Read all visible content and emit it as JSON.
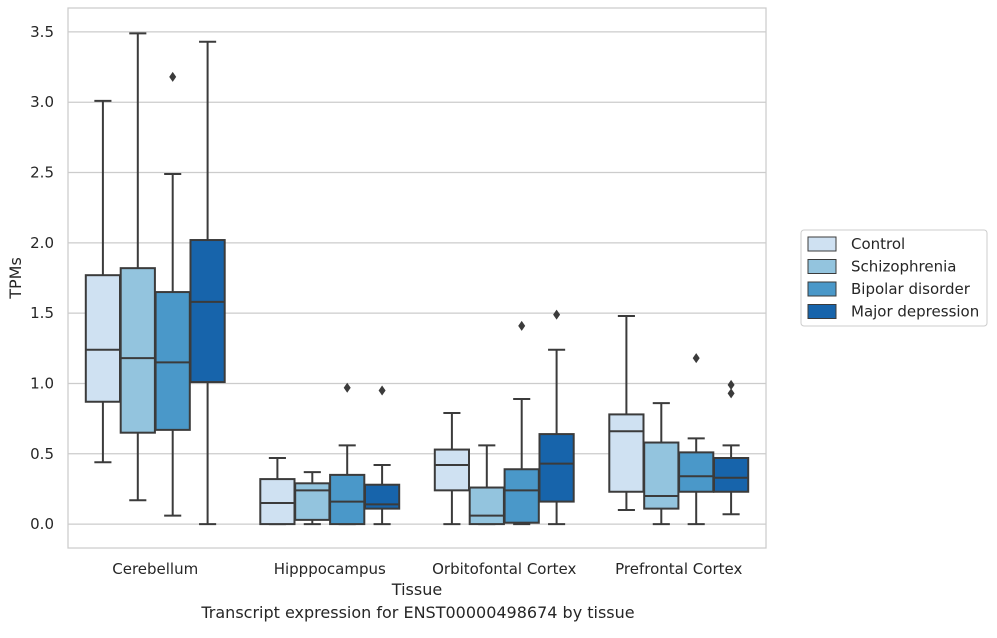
{
  "caption": "Transcript expression for ENST00000498674 by tissue",
  "colors": {
    "Control": "#cfe1f2",
    "Schizophrenia": "#93c4de",
    "Bipolar disorder": "#4a98c9",
    "Major depression": "#1764ab",
    "box_edge": "#3b3b3b",
    "grid": "#cccccc",
    "frame": "#cccccc"
  },
  "chart_data": {
    "type": "box",
    "xlabel": "Tissue",
    "ylabel": "TPMs",
    "ylim": [
      -0.17,
      3.67
    ],
    "yticks": [
      0.0,
      0.5,
      1.0,
      1.5,
      2.0,
      2.5,
      3.0,
      3.5
    ],
    "ytick_labels": [
      "0.0",
      "0.5",
      "1.0",
      "1.5",
      "2.0",
      "2.5",
      "3.0",
      "3.5"
    ],
    "grid": "horizontal",
    "legend_position": "right",
    "categories": [
      "Cerebellum",
      "Hipppocampus",
      "Orbitofontal Cortex",
      "Prefrontal Cortex"
    ],
    "series": [
      {
        "name": "Control",
        "boxes": [
          {
            "whisker_low": 0.44,
            "q1": 0.87,
            "median": 1.24,
            "q3": 1.77,
            "whisker_high": 3.01,
            "outliers": []
          },
          {
            "whisker_low": 0.0,
            "q1": 0.0,
            "median": 0.15,
            "q3": 0.32,
            "whisker_high": 0.47,
            "outliers": []
          },
          {
            "whisker_low": 0.0,
            "q1": 0.24,
            "median": 0.42,
            "q3": 0.53,
            "whisker_high": 0.79,
            "outliers": []
          },
          {
            "whisker_low": 0.1,
            "q1": 0.23,
            "median": 0.66,
            "q3": 0.78,
            "whisker_high": 1.48,
            "outliers": []
          }
        ]
      },
      {
        "name": "Schizophrenia",
        "boxes": [
          {
            "whisker_low": 0.17,
            "q1": 0.65,
            "median": 1.18,
            "q3": 1.82,
            "whisker_high": 3.49,
            "outliers": []
          },
          {
            "whisker_low": 0.0,
            "q1": 0.03,
            "median": 0.24,
            "q3": 0.29,
            "whisker_high": 0.37,
            "outliers": []
          },
          {
            "whisker_low": 0.0,
            "q1": 0.0,
            "median": 0.06,
            "q3": 0.26,
            "whisker_high": 0.56,
            "outliers": []
          },
          {
            "whisker_low": 0.0,
            "q1": 0.11,
            "median": 0.2,
            "q3": 0.58,
            "whisker_high": 0.86,
            "outliers": []
          }
        ]
      },
      {
        "name": "Bipolar disorder",
        "boxes": [
          {
            "whisker_low": 0.06,
            "q1": 0.67,
            "median": 1.15,
            "q3": 1.65,
            "whisker_high": 2.49,
            "outliers": [
              3.18
            ]
          },
          {
            "whisker_low": 0.0,
            "q1": 0.0,
            "median": 0.16,
            "q3": 0.35,
            "whisker_high": 0.56,
            "outliers": [
              0.97
            ]
          },
          {
            "whisker_low": 0.0,
            "q1": 0.01,
            "median": 0.24,
            "q3": 0.39,
            "whisker_high": 0.89,
            "outliers": [
              1.41
            ]
          },
          {
            "whisker_low": 0.0,
            "q1": 0.23,
            "median": 0.34,
            "q3": 0.51,
            "whisker_high": 0.61,
            "outliers": [
              1.18
            ]
          }
        ]
      },
      {
        "name": "Major depression",
        "boxes": [
          {
            "whisker_low": 0.0,
            "q1": 1.01,
            "median": 1.58,
            "q3": 2.02,
            "whisker_high": 3.43,
            "outliers": []
          },
          {
            "whisker_low": 0.0,
            "q1": 0.11,
            "median": 0.14,
            "q3": 0.28,
            "whisker_high": 0.42,
            "outliers": [
              0.95
            ]
          },
          {
            "whisker_low": 0.0,
            "q1": 0.16,
            "median": 0.43,
            "q3": 0.64,
            "whisker_high": 1.24,
            "outliers": [
              1.49
            ]
          },
          {
            "whisker_low": 0.07,
            "q1": 0.23,
            "median": 0.33,
            "q3": 0.47,
            "whisker_high": 0.56,
            "outliers": [
              0.93,
              0.99
            ]
          }
        ]
      }
    ]
  }
}
